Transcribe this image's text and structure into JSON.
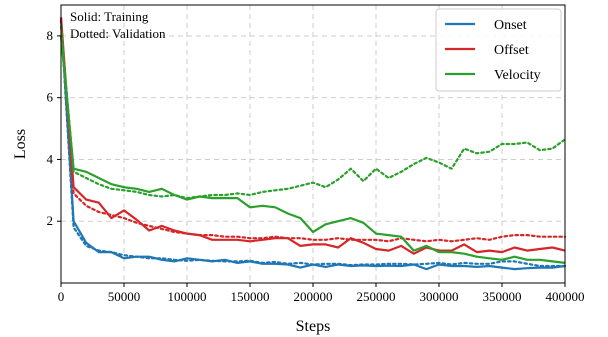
{
  "chart_data": {
    "type": "line",
    "xlabel": "Steps",
    "ylabel": "Loss",
    "xlim": [
      0,
      400000
    ],
    "ylim": [
      0,
      9
    ],
    "xticks": [
      0,
      50000,
      100000,
      150000,
      200000,
      250000,
      300000,
      350000,
      400000
    ],
    "yticks": [
      2,
      4,
      6,
      8
    ],
    "grid": true,
    "annotations": [
      "Solid: Training",
      "Dotted: Validation"
    ],
    "legend_position": "top-right",
    "series": [
      {
        "name": "Onset",
        "color": "#1f77b4",
        "training": {
          "x": [
            0,
            10000,
            20000,
            30000,
            40000,
            50000,
            60000,
            70000,
            80000,
            90000,
            100000,
            110000,
            120000,
            130000,
            140000,
            150000,
            160000,
            170000,
            180000,
            190000,
            200000,
            210000,
            220000,
            230000,
            240000,
            250000,
            260000,
            270000,
            280000,
            290000,
            300000,
            310000,
            320000,
            330000,
            340000,
            350000,
            360000,
            370000,
            380000,
            390000,
            400000
          ],
          "y": [
            8.6,
            2.0,
            1.3,
            1.0,
            1.0,
            0.8,
            0.85,
            0.85,
            0.75,
            0.7,
            0.8,
            0.75,
            0.7,
            0.75,
            0.65,
            0.7,
            0.62,
            0.62,
            0.6,
            0.5,
            0.6,
            0.52,
            0.6,
            0.55,
            0.57,
            0.55,
            0.56,
            0.55,
            0.6,
            0.45,
            0.6,
            0.55,
            0.55,
            0.52,
            0.55,
            0.5,
            0.45,
            0.48,
            0.5,
            0.5,
            0.55
          ]
        },
        "validation": {
          "x": [
            0,
            10000,
            20000,
            30000,
            40000,
            50000,
            60000,
            70000,
            80000,
            90000,
            100000,
            110000,
            120000,
            130000,
            140000,
            150000,
            160000,
            170000,
            180000,
            190000,
            200000,
            210000,
            220000,
            230000,
            240000,
            250000,
            260000,
            270000,
            280000,
            290000,
            300000,
            310000,
            320000,
            330000,
            340000,
            350000,
            360000,
            370000,
            380000,
            390000,
            400000
          ],
          "y": [
            8.5,
            1.8,
            1.2,
            1.05,
            1.0,
            0.9,
            0.85,
            0.8,
            0.8,
            0.75,
            0.72,
            0.75,
            0.72,
            0.7,
            0.7,
            0.72,
            0.65,
            0.68,
            0.62,
            0.65,
            0.6,
            0.62,
            0.62,
            0.58,
            0.6,
            0.6,
            0.62,
            0.62,
            0.6,
            0.62,
            0.65,
            0.6,
            0.65,
            0.62,
            0.62,
            0.7,
            0.7,
            0.62,
            0.55,
            0.55,
            0.55
          ]
        }
      },
      {
        "name": "Offset",
        "color": "#d62728",
        "training": {
          "x": [
            0,
            10000,
            20000,
            30000,
            40000,
            50000,
            60000,
            70000,
            80000,
            90000,
            100000,
            110000,
            120000,
            130000,
            140000,
            150000,
            160000,
            170000,
            180000,
            190000,
            200000,
            210000,
            220000,
            230000,
            240000,
            250000,
            260000,
            270000,
            280000,
            290000,
            300000,
            310000,
            320000,
            330000,
            340000,
            350000,
            360000,
            370000,
            380000,
            390000,
            400000
          ],
          "y": [
            8.6,
            3.1,
            2.7,
            2.6,
            2.1,
            2.35,
            2.05,
            1.7,
            1.85,
            1.7,
            1.6,
            1.55,
            1.4,
            1.4,
            1.4,
            1.35,
            1.4,
            1.45,
            1.45,
            1.2,
            1.25,
            1.25,
            1.15,
            1.45,
            1.3,
            1.1,
            1.05,
            1.2,
            0.95,
            1.15,
            1.05,
            1.05,
            1.25,
            1.0,
            1.05,
            1.0,
            1.15,
            1.05,
            1.1,
            1.15,
            1.05
          ]
        },
        "validation": {
          "x": [
            0,
            10000,
            20000,
            30000,
            40000,
            50000,
            60000,
            70000,
            80000,
            90000,
            100000,
            110000,
            120000,
            130000,
            140000,
            150000,
            160000,
            170000,
            180000,
            190000,
            200000,
            210000,
            220000,
            230000,
            240000,
            250000,
            260000,
            270000,
            280000,
            290000,
            300000,
            310000,
            320000,
            330000,
            340000,
            350000,
            360000,
            370000,
            380000,
            390000,
            400000
          ],
          "y": [
            8.5,
            2.9,
            2.5,
            2.3,
            2.2,
            2.1,
            1.95,
            1.85,
            1.75,
            1.65,
            1.6,
            1.55,
            1.55,
            1.5,
            1.5,
            1.45,
            1.45,
            1.5,
            1.45,
            1.45,
            1.4,
            1.4,
            1.45,
            1.4,
            1.4,
            1.4,
            1.35,
            1.45,
            1.4,
            1.35,
            1.4,
            1.35,
            1.4,
            1.45,
            1.4,
            1.5,
            1.55,
            1.55,
            1.5,
            1.5,
            1.5
          ]
        }
      },
      {
        "name": "Velocity",
        "color": "#2ca02c",
        "training": {
          "x": [
            0,
            10000,
            20000,
            30000,
            40000,
            50000,
            60000,
            70000,
            80000,
            90000,
            100000,
            110000,
            120000,
            130000,
            140000,
            150000,
            160000,
            170000,
            180000,
            190000,
            200000,
            210000,
            220000,
            230000,
            240000,
            250000,
            260000,
            270000,
            280000,
            290000,
            300000,
            310000,
            320000,
            330000,
            340000,
            350000,
            360000,
            370000,
            380000,
            390000,
            400000
          ],
          "y": [
            8.0,
            3.7,
            3.6,
            3.4,
            3.2,
            3.1,
            3.05,
            2.95,
            3.05,
            2.85,
            2.7,
            2.8,
            2.75,
            2.75,
            2.75,
            2.45,
            2.5,
            2.45,
            2.25,
            2.1,
            1.65,
            1.9,
            2.0,
            2.1,
            1.95,
            1.6,
            1.55,
            1.5,
            1.05,
            1.2,
            1.0,
            1.0,
            0.95,
            0.85,
            0.8,
            0.75,
            0.85,
            0.75,
            0.75,
            0.7,
            0.65
          ]
        },
        "validation": {
          "x": [
            0,
            10000,
            20000,
            30000,
            40000,
            50000,
            60000,
            70000,
            80000,
            90000,
            100000,
            110000,
            120000,
            130000,
            140000,
            150000,
            160000,
            170000,
            180000,
            190000,
            200000,
            210000,
            220000,
            230000,
            240000,
            250000,
            260000,
            270000,
            280000,
            290000,
            300000,
            310000,
            320000,
            330000,
            340000,
            350000,
            360000,
            370000,
            380000,
            390000,
            400000
          ],
          "y": [
            8.3,
            3.6,
            3.4,
            3.2,
            3.05,
            3.0,
            2.95,
            2.85,
            2.8,
            2.85,
            2.75,
            2.8,
            2.85,
            2.85,
            2.9,
            2.85,
            2.95,
            3.0,
            3.05,
            3.15,
            3.25,
            3.1,
            3.35,
            3.7,
            3.3,
            3.7,
            3.4,
            3.6,
            3.85,
            4.05,
            3.9,
            3.7,
            4.35,
            4.2,
            4.25,
            4.5,
            4.5,
            4.55,
            4.3,
            4.35,
            4.65
          ]
        }
      }
    ]
  }
}
